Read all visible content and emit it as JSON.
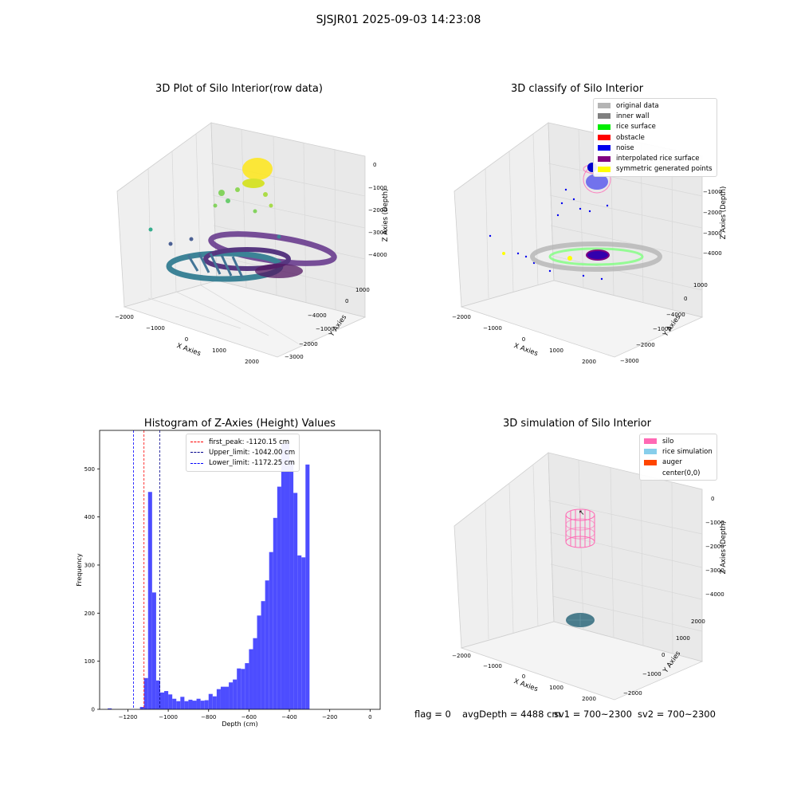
{
  "figure": {
    "suptitle": "SJSJR01 2025-09-03 14:23:08"
  },
  "panels": {
    "raw": {
      "title": "3D Plot of Silo Interior(row data)",
      "xlabel": "X Axies",
      "ylabel": "Y Axies",
      "zlabel": "Z Axies (Depth)",
      "xticks": [
        "−2000",
        "−1000",
        "0",
        "1000",
        "2000"
      ],
      "yticks": [
        "1000",
        "0",
        "−1000",
        "−2000",
        "−3000",
        "−4000"
      ],
      "zticks": [
        "0",
        "−1000",
        "−2000",
        "−3000",
        "−4000"
      ]
    },
    "classify": {
      "title": "3D classify of Silo Interior",
      "xlabel": "X Axies",
      "ylabel": "Y Axies",
      "zlabel": "Z Axies (Depth)",
      "xticks": [
        "−2000",
        "−1000",
        "0",
        "1000",
        "2000"
      ],
      "yticks": [
        "1000",
        "0",
        "−1000",
        "−2000",
        "−3000",
        "−4000"
      ],
      "zticks": [
        "0",
        "−1000",
        "−2000",
        "−3000",
        "−4000"
      ],
      "legend": [
        {
          "label": "original data",
          "color": "#b4b4b4"
        },
        {
          "label": "inner wall",
          "color": "#808080"
        },
        {
          "label": "rice surface",
          "color": "#00ee00"
        },
        {
          "label": "obstacle",
          "color": "#ff0000"
        },
        {
          "label": "noise",
          "color": "#0000ee"
        },
        {
          "label": "interpolated rice surface",
          "color": "#800080"
        },
        {
          "label": "symmetric generated points",
          "color": "#ffff00"
        }
      ]
    },
    "simulation": {
      "title": "3D simulation of Silo Interior",
      "xlabel": "X Axies",
      "ylabel": "Y Axies",
      "zlabel": "Z Axies (Depth)",
      "xticks": [
        "−2000",
        "−1000",
        "0",
        "1000",
        "2000"
      ],
      "yticks": [
        "2000",
        "1000",
        "0",
        "−1000",
        "−2000"
      ],
      "zticks": [
        "0",
        "−1000",
        "−2000",
        "−3000",
        "−4000"
      ],
      "legend": [
        {
          "label": "silo",
          "color": "#ff69b4"
        },
        {
          "label": "rice simulation",
          "color": "#87ceeb"
        },
        {
          "label": "auger",
          "color": "#ff4500"
        },
        {
          "label": "center(0,0)",
          "color": "none"
        }
      ]
    }
  },
  "chart_data": {
    "type": "bar",
    "title": "Histogram of Z-Axies (Height) Values",
    "xlabel": "Depth (cm)",
    "ylabel": "Frequency",
    "xlim": [
      -1340,
      50
    ],
    "ylim": [
      0,
      580
    ],
    "xticks": [
      -1200,
      -1000,
      -800,
      -600,
      -400,
      -200,
      0
    ],
    "xtick_labels": [
      "−1200",
      "−1000",
      "−800",
      "−600",
      "−400",
      "−200",
      "0"
    ],
    "yticks": [
      0,
      100,
      200,
      300,
      400,
      500
    ],
    "bin_width": 20,
    "bin_start": -1300,
    "values": [
      2,
      0,
      0,
      0,
      0,
      0,
      0,
      0,
      5,
      65,
      452,
      243,
      60,
      35,
      38,
      31,
      22,
      17,
      26,
      17,
      20,
      18,
      22,
      18,
      19,
      32,
      27,
      42,
      47,
      47,
      56,
      62,
      85,
      84,
      96,
      125,
      148,
      195,
      225,
      268,
      327,
      398,
      463,
      552,
      554,
      518,
      450,
      320,
      316,
      509
    ],
    "bar_color": "#4d4dff",
    "lines": [
      {
        "label": "first_peak: -1120.15 cm",
        "x": -1120.15,
        "color": "#ff0000"
      },
      {
        "label": "Upper_limit: -1042.00 cm",
        "x": -1042.0,
        "color": "#00008b"
      },
      {
        "label": "Lower_limit: -1172.25 cm",
        "x": -1172.25,
        "color": "#0000ff"
      }
    ],
    "legend_position": "upper-center"
  },
  "status": {
    "flag": "flag = 0",
    "avg_depth": "avgDepth = 4488 cm",
    "sv1": "sv1 = 700~2300",
    "sv2": "sv2 = 700~2300"
  }
}
